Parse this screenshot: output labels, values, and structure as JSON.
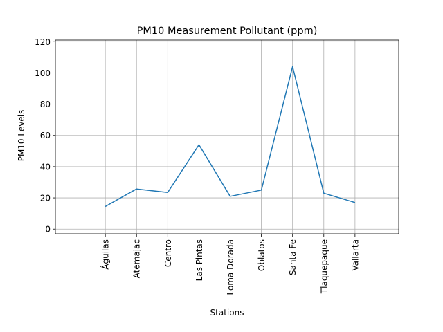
{
  "colors": {
    "line": "#1f77b4",
    "grid": "#b0b0b0",
    "axis": "#000000",
    "background": "#ffffff"
  },
  "chart_data": {
    "type": "line",
    "title": "PM10 Measurement Pollutant (ppm)",
    "xlabel": "Stations",
    "ylabel": "PM10 Levels",
    "categories": [
      "Águilas",
      "Atemajac",
      "Centro",
      "Las Pintas",
      "Loma Dorada",
      "Oblatos",
      "Santa Fe",
      "Tlaquepaque",
      "Vallarta"
    ],
    "series": [
      {
        "values": [
          14.5,
          25.7,
          23.5,
          54.0,
          21.0,
          25.0,
          104.0,
          23.0,
          17.0
        ]
      }
    ],
    "ylim": [
      -3,
      121
    ],
    "yticks": [
      "0",
      "20",
      "40",
      "60",
      "80",
      "100",
      "120"
    ],
    "grid": true,
    "legend": "none"
  }
}
